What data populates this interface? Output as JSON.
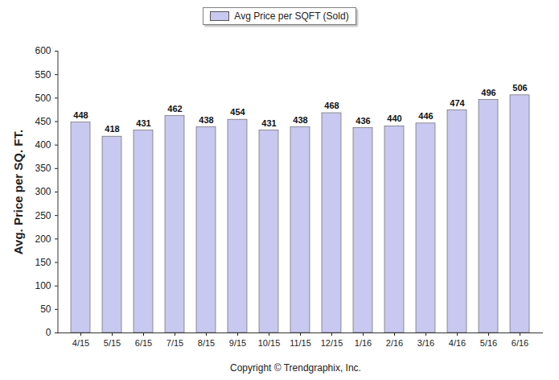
{
  "chart_data": {
    "type": "bar",
    "categories": [
      "4/15",
      "5/15",
      "6/15",
      "7/15",
      "8/15",
      "9/15",
      "10/15",
      "11/15",
      "12/15",
      "1/16",
      "2/16",
      "3/16",
      "4/16",
      "5/16",
      "6/16"
    ],
    "series": [
      {
        "name": "Avg Price per SQFT (Sold)",
        "color": "#c8c8f0",
        "values": [
          448,
          418,
          431,
          462,
          438,
          454,
          431,
          438,
          468,
          436,
          440,
          446,
          474,
          496,
          506
        ]
      }
    ],
    "y_label": "Avg. Price per SQ. FT.",
    "caption": "Copyright © Trendgraphix, Inc.",
    "ylim": [
      0,
      600
    ],
    "yticks": [
      0,
      50,
      100,
      150,
      200,
      250,
      300,
      350,
      400,
      450,
      500,
      550,
      600
    ],
    "legend": "top",
    "data_labels": true,
    "grid": false
  }
}
